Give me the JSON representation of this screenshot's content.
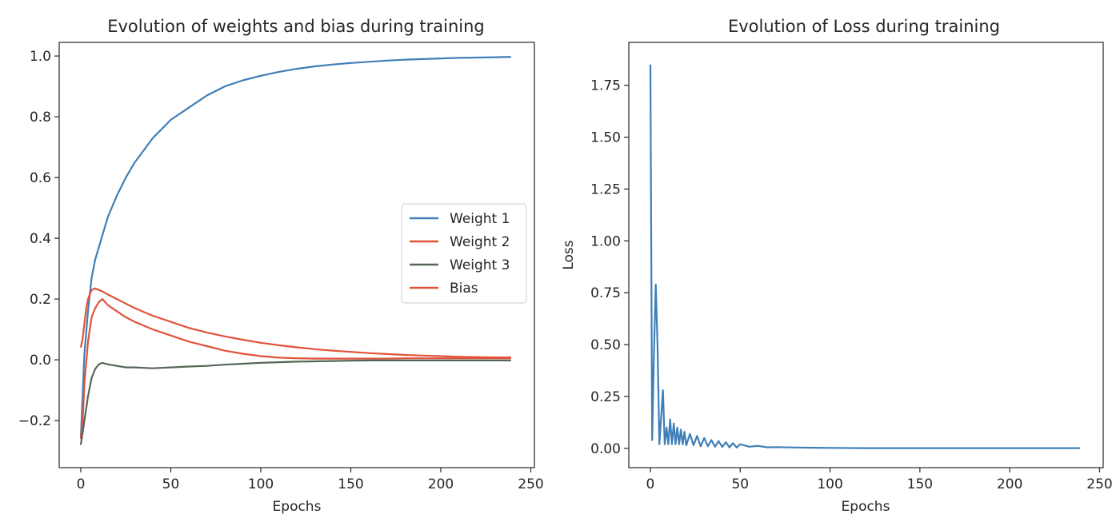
{
  "chart_data": [
    {
      "type": "line",
      "title": "Evolution of weights and bias during training",
      "xlabel": "Epochs",
      "ylabel": "",
      "xlim": [
        -12,
        252
      ],
      "ylim": [
        -0.355,
        1.045
      ],
      "xticks": [
        0,
        50,
        100,
        150,
        200,
        250
      ],
      "xtick_labels": [
        "0",
        "50",
        "100",
        "150",
        "200",
        "250"
      ],
      "yticks": [
        -0.2,
        0.0,
        0.2,
        0.4,
        0.6,
        0.8,
        1.0
      ],
      "ytick_labels": [
        "−0.2",
        "0.0",
        "0.2",
        "0.4",
        "0.6",
        "0.8",
        "1.0"
      ],
      "grid": false,
      "legend": "center-right",
      "series": [
        {
          "name": "Weight 1",
          "color": "#3f7fb8",
          "x": [
            0,
            2,
            4,
            6,
            8,
            10,
            15,
            20,
            25,
            30,
            35,
            40,
            45,
            50,
            60,
            70,
            80,
            90,
            100,
            110,
            120,
            130,
            140,
            150,
            160,
            170,
            180,
            190,
            200,
            210,
            220,
            230,
            239
          ],
          "y": [
            -0.26,
            0.02,
            0.16,
            0.27,
            0.33,
            0.37,
            0.47,
            0.54,
            0.6,
            0.65,
            0.69,
            0.73,
            0.76,
            0.79,
            0.83,
            0.87,
            0.9,
            0.92,
            0.935,
            0.948,
            0.958,
            0.966,
            0.972,
            0.977,
            0.981,
            0.985,
            0.988,
            0.99,
            0.992,
            0.994,
            0.995,
            0.996,
            0.997
          ]
        },
        {
          "name": "Weight 2",
          "color": "#e0533a",
          "x": [
            0,
            1,
            2,
            4,
            6,
            8,
            10,
            12,
            15,
            20,
            25,
            30,
            40,
            50,
            60,
            70,
            80,
            90,
            100,
            110,
            120,
            130,
            140,
            150,
            160,
            170,
            180,
            190,
            200,
            210,
            220,
            230,
            239
          ],
          "y": [
            -0.26,
            -0.2,
            -0.08,
            0.06,
            0.14,
            0.17,
            0.19,
            0.2,
            0.18,
            0.16,
            0.14,
            0.125,
            0.1,
            0.08,
            0.06,
            0.045,
            0.03,
            0.02,
            0.012,
            0.007,
            0.005,
            0.004,
            0.004,
            0.004,
            0.004,
            0.004,
            0.005,
            0.005,
            0.005,
            0.005,
            0.005,
            0.005,
            0.005
          ]
        },
        {
          "name": "Weight 3",
          "color": "#566656",
          "x": [
            0,
            2,
            4,
            6,
            8,
            10,
            12,
            15,
            20,
            25,
            30,
            40,
            50,
            60,
            70,
            80,
            90,
            100,
            110,
            120,
            130,
            140,
            150,
            160,
            170,
            180,
            190,
            200,
            210,
            220,
            230,
            239
          ],
          "y": [
            -0.28,
            -0.2,
            -0.12,
            -0.06,
            -0.03,
            -0.015,
            -0.01,
            -0.015,
            -0.02,
            -0.025,
            -0.025,
            -0.028,
            -0.025,
            -0.022,
            -0.02,
            -0.016,
            -0.013,
            -0.01,
            -0.008,
            -0.006,
            -0.005,
            -0.004,
            -0.003,
            -0.002,
            -0.002,
            -0.002,
            -0.002,
            -0.002,
            -0.002,
            -0.002,
            -0.002,
            -0.002
          ]
        },
        {
          "name": "Bias",
          "color": "#e0533a",
          "x": [
            0,
            1,
            2,
            3,
            4,
            6,
            8,
            10,
            12,
            15,
            20,
            25,
            30,
            40,
            50,
            60,
            70,
            80,
            90,
            100,
            110,
            120,
            130,
            140,
            150,
            160,
            170,
            180,
            190,
            200,
            210,
            220,
            230,
            239
          ],
          "y": [
            0.04,
            0.07,
            0.12,
            0.17,
            0.2,
            0.23,
            0.235,
            0.23,
            0.225,
            0.215,
            0.2,
            0.185,
            0.17,
            0.145,
            0.125,
            0.105,
            0.09,
            0.077,
            0.066,
            0.056,
            0.048,
            0.041,
            0.035,
            0.03,
            0.026,
            0.022,
            0.019,
            0.016,
            0.014,
            0.012,
            0.01,
            0.009,
            0.008,
            0.008
          ]
        }
      ]
    },
    {
      "type": "line",
      "title": "Evolution of Loss during training",
      "xlabel": "Epochs",
      "ylabel": "Loss",
      "xlim": [
        -12,
        252
      ],
      "ylim": [
        -0.093,
        1.957
      ],
      "xticks": [
        0,
        50,
        100,
        150,
        200,
        250
      ],
      "xtick_labels": [
        "0",
        "50",
        "100",
        "150",
        "200",
        "250"
      ],
      "yticks": [
        0.0,
        0.25,
        0.5,
        0.75,
        1.0,
        1.25,
        1.5,
        1.75
      ],
      "ytick_labels": [
        "0.00",
        "0.25",
        "0.50",
        "0.75",
        "1.00",
        "1.25",
        "1.50",
        "1.75"
      ],
      "grid": false,
      "series": [
        {
          "color": "#3f7fb8",
          "x": [
            0,
            1,
            2,
            3,
            4,
            5,
            6,
            7,
            8,
            9,
            10,
            11,
            12,
            13,
            14,
            15,
            16,
            17,
            18,
            19,
            20,
            22,
            24,
            26,
            28,
            30,
            32,
            34,
            36,
            38,
            40,
            42,
            44,
            46,
            48,
            50,
            55,
            60,
            65,
            70,
            80,
            90,
            100,
            120,
            140,
            160,
            180,
            200,
            220,
            239
          ],
          "y": [
            1.85,
            0.04,
            0.45,
            0.79,
            0.5,
            0.02,
            0.15,
            0.28,
            0.02,
            0.1,
            0.02,
            0.14,
            0.02,
            0.12,
            0.02,
            0.1,
            0.02,
            0.09,
            0.02,
            0.08,
            0.015,
            0.07,
            0.015,
            0.06,
            0.01,
            0.05,
            0.01,
            0.04,
            0.008,
            0.035,
            0.006,
            0.03,
            0.005,
            0.025,
            0.004,
            0.02,
            0.008,
            0.012,
            0.005,
            0.006,
            0.004,
            0.003,
            0.002,
            0.001,
            0.001,
            0.001,
            0.001,
            0.001,
            0.001,
            0.001
          ]
        }
      ]
    }
  ]
}
